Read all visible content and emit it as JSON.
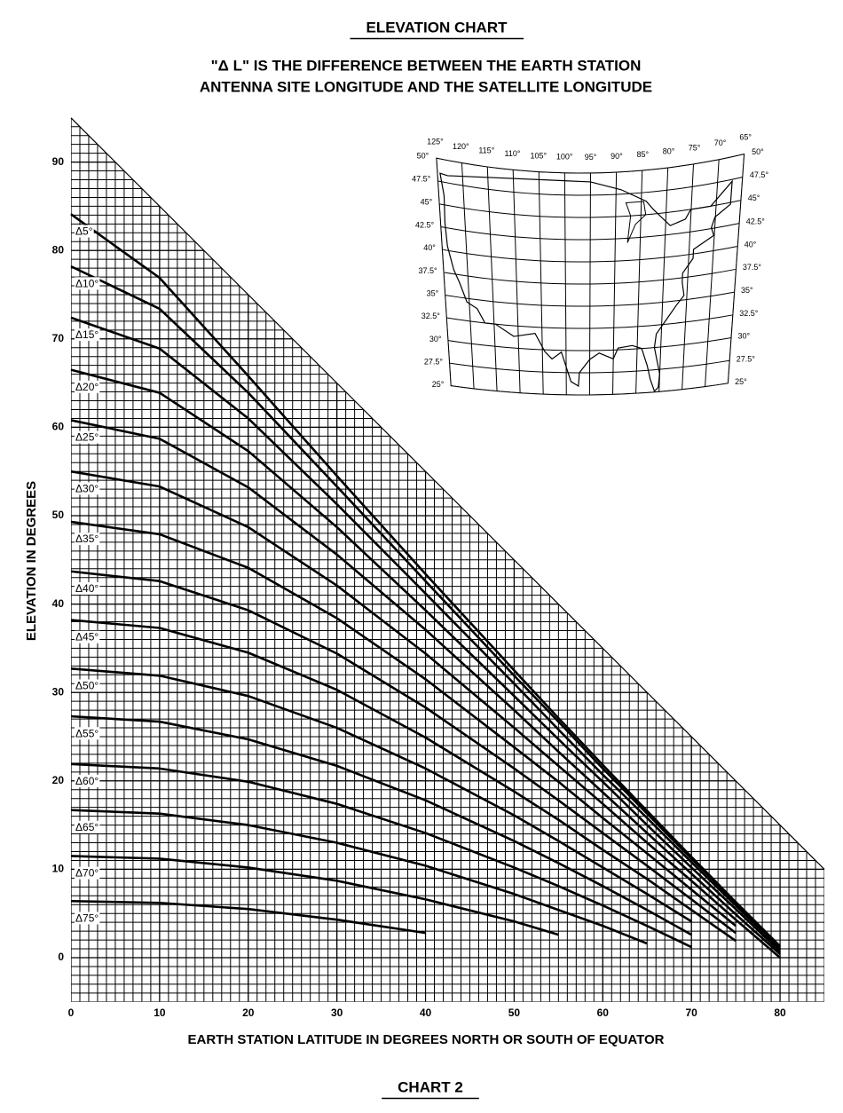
{
  "chart_data": {
    "type": "line",
    "title": "ELEVATION CHART",
    "subtitle": [
      "\"Δ L\" IS THE DIFFERENCE BETWEEN THE EARTH STATION",
      "ANTENNA SITE LONGITUDE AND THE SATELLITE LONGITUDE"
    ],
    "x_label": "EARTH STATION LATITUDE IN DEGREES NORTH OR SOUTH OF EQUATOR",
    "y_label": "ELEVATION IN DEGREES",
    "caption": "CHART 2",
    "xlim": [
      0,
      85
    ],
    "ylim": [
      -5,
      95
    ],
    "xticks": [
      0,
      10,
      20,
      30,
      40,
      50,
      60,
      70,
      80
    ],
    "yticks": [
      0,
      10,
      20,
      30,
      40,
      50,
      60,
      70,
      80,
      90
    ],
    "grid": true,
    "x": [
      0,
      10,
      20,
      30,
      40,
      50,
      55,
      60,
      65,
      70,
      75,
      80
    ],
    "series": [
      {
        "name": "Δ5°",
        "color": "#000000",
        "values": [
          84.1,
          76.9,
          65.8,
          54.5,
          43.4,
          32.5,
          27.1,
          21.8,
          16.6,
          11.4,
          6.3,
          1.3
        ]
      },
      {
        "name": "Δ10°",
        "color": "#000000",
        "values": [
          78.2,
          73.4,
          63.9,
          53.3,
          42.6,
          31.9,
          26.7,
          21.4,
          16.3,
          11.2,
          6.2,
          1.2
        ]
      },
      {
        "name": "Δ15°",
        "color": "#000000",
        "values": [
          72.4,
          68.9,
          61.0,
          51.3,
          41.2,
          31.0,
          25.8,
          20.7,
          15.8,
          10.8,
          5.9,
          1.0
        ]
      },
      {
        "name": "Δ20°",
        "color": "#000000",
        "values": [
          66.5,
          63.9,
          57.3,
          48.7,
          39.3,
          29.6,
          24.7,
          19.9,
          15.0,
          10.2,
          5.5,
          0.7
        ]
      },
      {
        "name": "Δ25°",
        "color": "#000000",
        "values": [
          60.8,
          58.7,
          53.2,
          45.6,
          37.1,
          28.0,
          23.3,
          18.7,
          14.1,
          9.5,
          4.9,
          0.4
        ]
      },
      {
        "name": "Δ30°",
        "color": "#000000",
        "values": [
          55.0,
          53.3,
          48.7,
          42.1,
          34.4,
          26.0,
          21.7,
          17.4,
          13.0,
          8.7,
          4.3,
          0
        ]
      },
      {
        "name": "Δ35°",
        "color": "#000000",
        "values": [
          49.3,
          47.9,
          44.1,
          38.4,
          31.5,
          23.8,
          19.9,
          15.8,
          11.8,
          7.7,
          3.6,
          null
        ]
      },
      {
        "name": "Δ40°",
        "color": "#000000",
        "values": [
          43.7,
          42.6,
          39.3,
          34.4,
          28.3,
          21.4,
          17.8,
          14.1,
          10.4,
          6.6,
          2.8,
          null
        ]
      },
      {
        "name": "Δ45°",
        "color": "#000000",
        "values": [
          38.2,
          37.3,
          34.5,
          30.3,
          24.9,
          18.8,
          15.6,
          12.2,
          8.9,
          5.4,
          1.9,
          null
        ]
      },
      {
        "name": "Δ50°",
        "color": "#000000",
        "values": [
          32.7,
          31.9,
          29.6,
          26.0,
          21.4,
          16.1,
          13.2,
          10.2,
          7.2,
          4.1,
          null,
          null
        ]
      },
      {
        "name": "Δ55°",
        "color": "#000000",
        "values": [
          27.3,
          26.7,
          24.7,
          21.7,
          17.8,
          13.2,
          10.7,
          8.1,
          5.4,
          2.6,
          null,
          null
        ]
      },
      {
        "name": "Δ60°",
        "color": "#000000",
        "values": [
          21.9,
          21.4,
          19.9,
          17.4,
          14.1,
          10.2,
          8.1,
          5.9,
          3.6,
          1.2,
          null,
          null
        ]
      },
      {
        "name": "Δ65°",
        "color": "#000000",
        "values": [
          16.7,
          16.3,
          15.0,
          13.0,
          10.4,
          7.2,
          5.4,
          3.6,
          1.6,
          null,
          null,
          null
        ]
      },
      {
        "name": "Δ70°",
        "color": "#000000",
        "values": [
          11.5,
          11.2,
          10.2,
          8.7,
          6.6,
          4.1,
          2.6,
          null,
          null,
          null,
          null,
          null
        ]
      },
      {
        "name": "Δ75°",
        "color": "#000000",
        "values": [
          6.4,
          6.2,
          5.5,
          4.3,
          2.8,
          null,
          null,
          null,
          null,
          null,
          null,
          null
        ]
      }
    ]
  },
  "inset": {
    "longitudes": [
      "125°",
      "120°",
      "115°",
      "110°",
      "105°",
      "100°",
      "95°",
      "90°",
      "85°",
      "80°",
      "75°",
      "70°",
      "65°"
    ],
    "latitudes_left": [
      "50°",
      "47.5°",
      "45°",
      "42.5°",
      "40°",
      "37.5°",
      "35°",
      "32.5°",
      "30°",
      "27.5°",
      "25°"
    ],
    "latitudes_right": [
      "50°",
      "47.5°",
      "45°",
      "42.5°",
      "40°",
      "37.5°",
      "35°",
      "32.5°",
      "30°",
      "27.5°",
      "25°"
    ]
  }
}
